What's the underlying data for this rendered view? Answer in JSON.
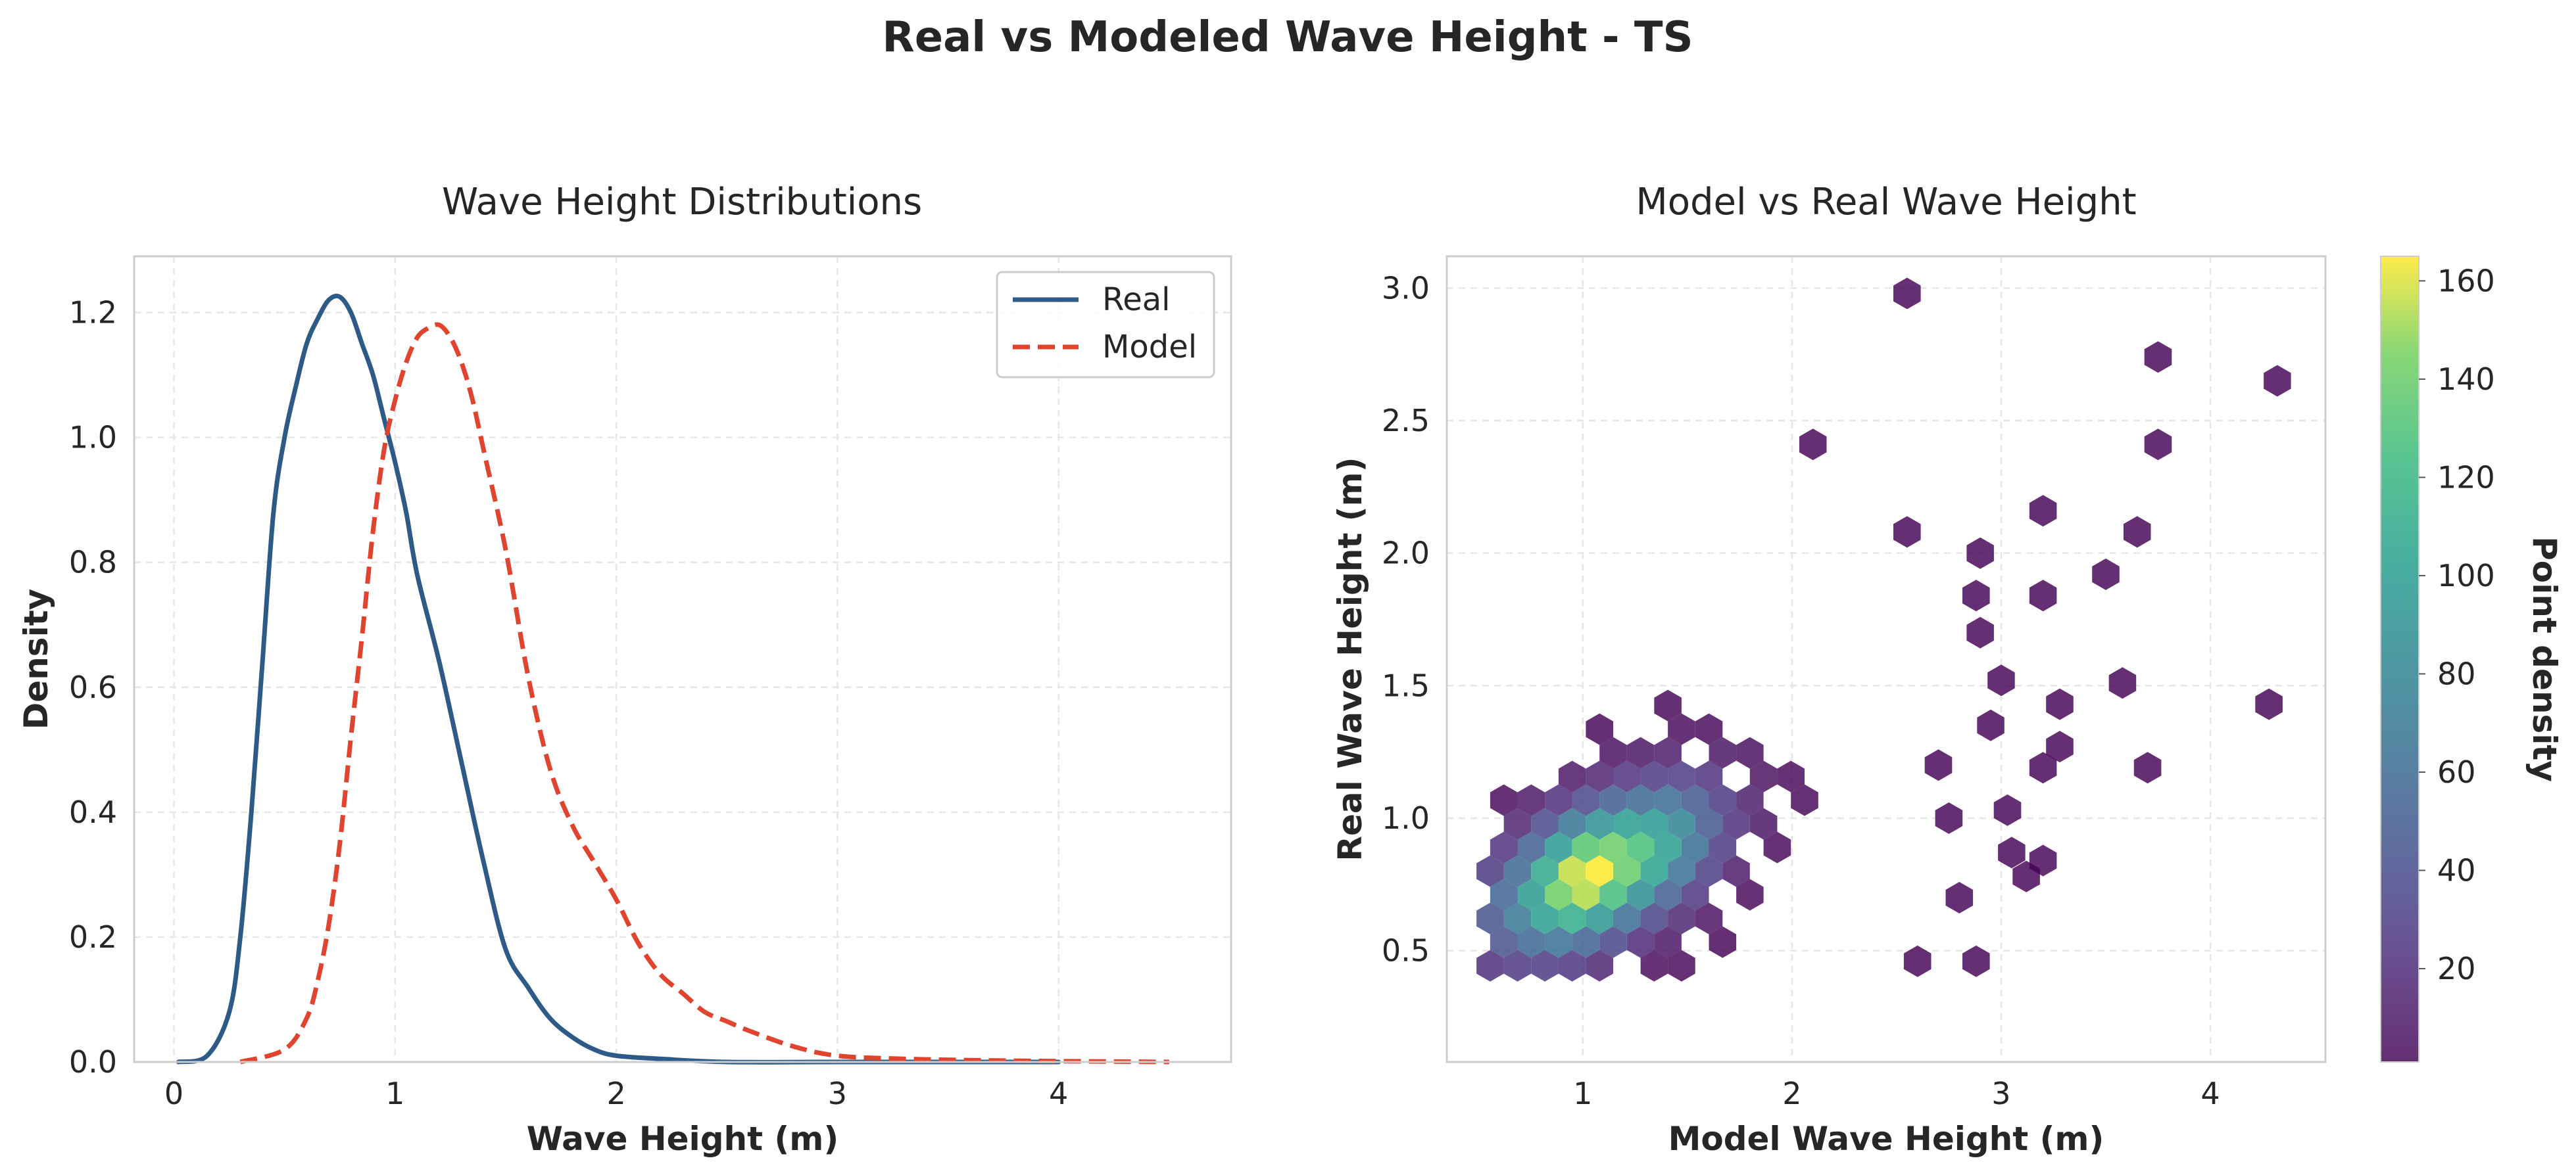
{
  "figure": {
    "suptitle": "Real vs Modeled Wave Height - TS"
  },
  "chart_data": [
    {
      "type": "line",
      "title": "Wave Height Distributions",
      "xlabel": "Wave Height (m)",
      "ylabel": "Density",
      "xlim": [
        -0.18,
        4.78
      ],
      "ylim": [
        0,
        1.29
      ],
      "xticks": [
        0,
        1,
        2,
        3,
        4
      ],
      "xtick_labels": [
        "0",
        "1",
        "2",
        "3",
        "4"
      ],
      "yticks": [
        0,
        0.2,
        0.4,
        0.6,
        0.8,
        1.0,
        1.2
      ],
      "ytick_labels": [
        "0.0",
        "0.2",
        "0.4",
        "0.6",
        "0.8",
        "1.0",
        "1.2"
      ],
      "grid": true,
      "legend_position": "top-right",
      "series": [
        {
          "name": "Real",
          "color": "#2e5a87",
          "style": "solid",
          "x": [
            0.02,
            0.15,
            0.25,
            0.3,
            0.35,
            0.4,
            0.45,
            0.5,
            0.55,
            0.6,
            0.65,
            0.7,
            0.75,
            0.8,
            0.85,
            0.9,
            0.95,
            1.0,
            1.05,
            1.1,
            1.2,
            1.3,
            1.4,
            1.5,
            1.6,
            1.7,
            1.8,
            1.9,
            2.0,
            2.2,
            2.5,
            3.0,
            4.0
          ],
          "y": [
            0.0,
            0.01,
            0.08,
            0.2,
            0.4,
            0.64,
            0.88,
            1.0,
            1.08,
            1.15,
            1.19,
            1.22,
            1.225,
            1.2,
            1.15,
            1.1,
            1.03,
            0.96,
            0.88,
            0.78,
            0.64,
            0.48,
            0.32,
            0.18,
            0.12,
            0.07,
            0.04,
            0.02,
            0.01,
            0.005,
            0.0,
            0.0,
            0.0
          ]
        },
        {
          "name": "Model",
          "color": "#e0442e",
          "style": "dashed",
          "x": [
            0.3,
            0.5,
            0.6,
            0.65,
            0.7,
            0.75,
            0.8,
            0.85,
            0.9,
            0.95,
            1.0,
            1.05,
            1.1,
            1.15,
            1.2,
            1.25,
            1.3,
            1.35,
            1.4,
            1.5,
            1.6,
            1.7,
            1.8,
            1.9,
            2.0,
            2.1,
            2.2,
            2.3,
            2.4,
            2.5,
            2.6,
            2.8,
            3.0,
            3.3,
            3.8,
            4.5
          ],
          "y": [
            0.0,
            0.02,
            0.07,
            0.13,
            0.22,
            0.35,
            0.52,
            0.68,
            0.85,
            0.98,
            1.06,
            1.12,
            1.16,
            1.175,
            1.18,
            1.16,
            1.12,
            1.06,
            0.98,
            0.82,
            0.62,
            0.47,
            0.38,
            0.32,
            0.26,
            0.19,
            0.14,
            0.11,
            0.08,
            0.065,
            0.05,
            0.025,
            0.01,
            0.005,
            0.002,
            0.0
          ]
        }
      ]
    },
    {
      "type": "heatmap",
      "subtype": "hexbin",
      "title": "Model vs Real Wave Height",
      "xlabel": "Model Wave Height (m)",
      "ylabel": "Real Wave Height (m)",
      "xlim": [
        0.35,
        4.55
      ],
      "ylim": [
        0.08,
        3.12
      ],
      "xticks": [
        1,
        2,
        3,
        4
      ],
      "xtick_labels": [
        "1",
        "2",
        "3",
        "4"
      ],
      "yticks": [
        0.5,
        1.0,
        1.5,
        2.0,
        2.5,
        3.0
      ],
      "ytick_labels": [
        "0.5",
        "1.0",
        "1.5",
        "2.0",
        "2.5",
        "3.0"
      ],
      "grid": true,
      "colormap": "viridis",
      "colorbar": {
        "label": "Point density",
        "range": [
          1,
          165
        ],
        "ticks": [
          20,
          40,
          60,
          80,
          100,
          120,
          140,
          160
        ],
        "tick_labels": [
          "20",
          "40",
          "60",
          "80",
          "100",
          "120",
          "140",
          "160"
        ]
      },
      "density_peak": {
        "x": 1.08,
        "y": 0.8,
        "count": 165
      },
      "outliers": [
        {
          "x": 2.55,
          "y": 2.98
        },
        {
          "x": 3.75,
          "y": 2.74
        },
        {
          "x": 4.32,
          "y": 2.65
        },
        {
          "x": 2.1,
          "y": 2.41
        },
        {
          "x": 3.75,
          "y": 2.41
        },
        {
          "x": 3.2,
          "y": 2.16
        },
        {
          "x": 3.65,
          "y": 2.08
        },
        {
          "x": 3.5,
          "y": 1.92
        },
        {
          "x": 3.2,
          "y": 1.84
        },
        {
          "x": 3.58,
          "y": 1.51
        },
        {
          "x": 4.28,
          "y": 1.43
        },
        {
          "x": 3.28,
          "y": 1.43
        },
        {
          "x": 3.28,
          "y": 1.27
        },
        {
          "x": 3.7,
          "y": 1.19
        },
        {
          "x": 3.2,
          "y": 1.19
        },
        {
          "x": 3.03,
          "y": 1.03
        },
        {
          "x": 3.05,
          "y": 0.87
        },
        {
          "x": 3.2,
          "y": 0.84
        },
        {
          "x": 3.12,
          "y": 0.78
        },
        {
          "x": 2.88,
          "y": 0.46
        },
        {
          "x": 2.6,
          "y": 0.46
        },
        {
          "x": 2.9,
          "y": 1.7
        },
        {
          "x": 3.0,
          "y": 1.52
        },
        {
          "x": 2.95,
          "y": 1.35
        },
        {
          "x": 2.88,
          "y": 1.84
        },
        {
          "x": 2.9,
          "y": 2.0
        },
        {
          "x": 2.55,
          "y": 2.08
        },
        {
          "x": 2.7,
          "y": 1.2
        },
        {
          "x": 2.75,
          "y": 1.0
        },
        {
          "x": 2.8,
          "y": 0.7
        }
      ]
    }
  ]
}
